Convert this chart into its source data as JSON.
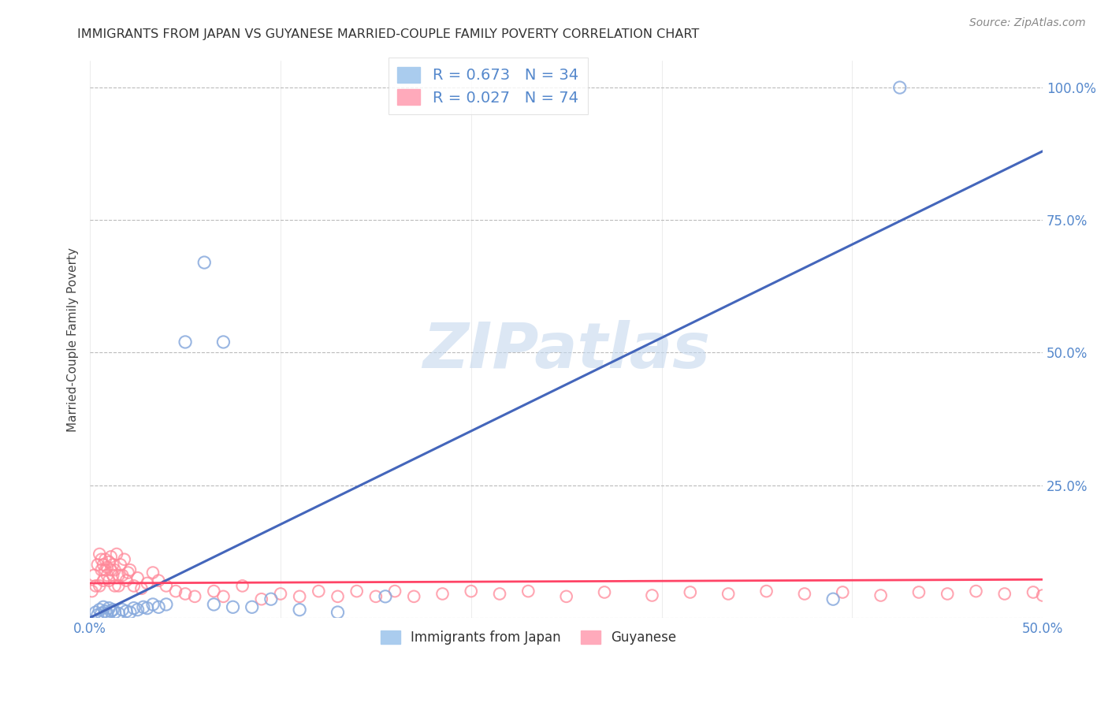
{
  "title": "IMMIGRANTS FROM JAPAN VS GUYANESE MARRIED-COUPLE FAMILY POVERTY CORRELATION CHART",
  "source": "Source: ZipAtlas.com",
  "xlabel_blue": "Immigrants from Japan",
  "xlabel_pink": "Guyanese",
  "ylabel": "Married-Couple Family Poverty",
  "xlim": [
    0.0,
    0.5
  ],
  "ylim": [
    0.0,
    1.05
  ],
  "xticks": [
    0.0,
    0.1,
    0.2,
    0.3,
    0.4,
    0.5
  ],
  "xtick_labels": [
    "0.0%",
    "",
    "",
    "",
    "",
    "50.0%"
  ],
  "yticks": [
    0.0,
    0.25,
    0.5,
    0.75,
    1.0
  ],
  "ytick_labels": [
    "",
    "25.0%",
    "50.0%",
    "75.0%",
    "100.0%"
  ],
  "blue_color": "#88AADD",
  "pink_color": "#FF8899",
  "trend_blue_color": "#4466BB",
  "trend_pink_color": "#FF4466",
  "R_blue": 0.673,
  "N_blue": 34,
  "R_pink": 0.027,
  "N_pink": 74,
  "watermark": "ZIPatlas",
  "background_color": "#FFFFFF",
  "grid_color": "#BBBBBB",
  "axis_color": "#5588CC",
  "blue_points_x": [
    0.003,
    0.004,
    0.005,
    0.006,
    0.007,
    0.008,
    0.009,
    0.01,
    0.011,
    0.012,
    0.013,
    0.015,
    0.017,
    0.019,
    0.021,
    0.023,
    0.025,
    0.028,
    0.03,
    0.033,
    0.036,
    0.04,
    0.05,
    0.06,
    0.065,
    0.07,
    0.075,
    0.085,
    0.095,
    0.11,
    0.13,
    0.155,
    0.39,
    0.425
  ],
  "blue_points_y": [
    0.01,
    0.005,
    0.015,
    0.008,
    0.02,
    0.012,
    0.008,
    0.018,
    0.012,
    0.015,
    0.01,
    0.008,
    0.015,
    0.012,
    0.01,
    0.018,
    0.015,
    0.02,
    0.018,
    0.025,
    0.02,
    0.025,
    0.52,
    0.67,
    0.025,
    0.52,
    0.02,
    0.02,
    0.035,
    0.015,
    0.01,
    0.04,
    0.035,
    1.0
  ],
  "pink_points_x": [
    0.001,
    0.002,
    0.003,
    0.004,
    0.005,
    0.005,
    0.006,
    0.006,
    0.007,
    0.007,
    0.008,
    0.008,
    0.009,
    0.009,
    0.01,
    0.01,
    0.011,
    0.011,
    0.012,
    0.012,
    0.013,
    0.013,
    0.014,
    0.015,
    0.015,
    0.016,
    0.017,
    0.018,
    0.019,
    0.02,
    0.021,
    0.023,
    0.025,
    0.027,
    0.03,
    0.033,
    0.036,
    0.04,
    0.045,
    0.05,
    0.055,
    0.065,
    0.07,
    0.08,
    0.09,
    0.1,
    0.11,
    0.12,
    0.13,
    0.14,
    0.15,
    0.16,
    0.17,
    0.185,
    0.2,
    0.215,
    0.23,
    0.25,
    0.27,
    0.295,
    0.315,
    0.335,
    0.355,
    0.375,
    0.395,
    0.415,
    0.435,
    0.45,
    0.465,
    0.48,
    0.495,
    0.5,
    0.505,
    0.51
  ],
  "pink_points_y": [
    0.05,
    0.08,
    0.06,
    0.1,
    0.12,
    0.06,
    0.09,
    0.11,
    0.07,
    0.1,
    0.09,
    0.11,
    0.08,
    0.095,
    0.07,
    0.105,
    0.09,
    0.115,
    0.08,
    0.1,
    0.06,
    0.09,
    0.12,
    0.08,
    0.06,
    0.1,
    0.08,
    0.11,
    0.07,
    0.085,
    0.09,
    0.06,
    0.075,
    0.055,
    0.065,
    0.085,
    0.07,
    0.06,
    0.05,
    0.045,
    0.04,
    0.05,
    0.04,
    0.06,
    0.035,
    0.045,
    0.04,
    0.05,
    0.04,
    0.05,
    0.04,
    0.05,
    0.04,
    0.045,
    0.05,
    0.045,
    0.05,
    0.04,
    0.048,
    0.042,
    0.048,
    0.045,
    0.05,
    0.045,
    0.048,
    0.042,
    0.048,
    0.045,
    0.05,
    0.045,
    0.048,
    0.042,
    0.048,
    0.045
  ],
  "blue_trend_x": [
    0.0,
    0.5
  ],
  "blue_trend_y": [
    0.0,
    0.88
  ],
  "pink_trend_x": [
    0.0,
    0.5
  ],
  "pink_trend_y": [
    0.065,
    0.072
  ]
}
